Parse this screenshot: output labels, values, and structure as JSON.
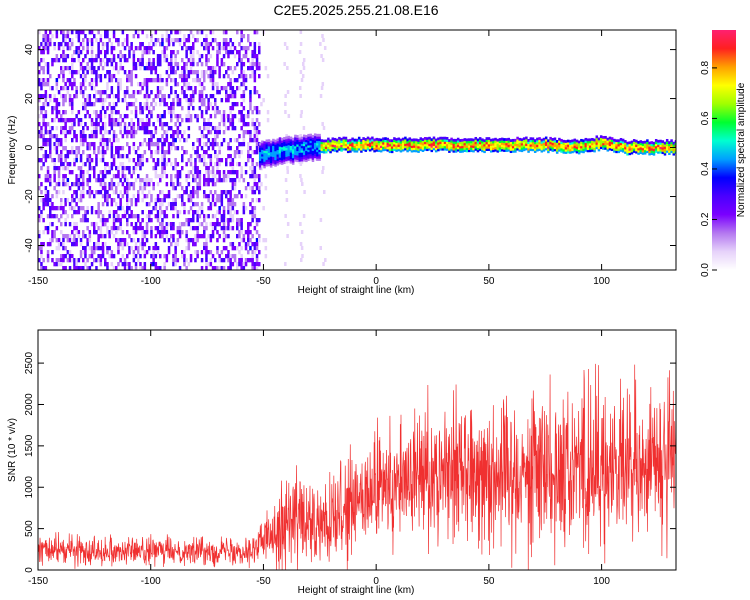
{
  "title": "C2E5.2025.255.21.08.E16",
  "colors": {
    "snr_line": "#f03030",
    "colormap": [
      "#ffffff",
      "#e6d2fa",
      "#b478f0",
      "#7a00ff",
      "#4a00ff",
      "#0000ff",
      "#00a0ff",
      "#00ffd0",
      "#00ff30",
      "#a0ff00",
      "#ffff00",
      "#ffa000",
      "#ff2020",
      "#ff2070"
    ]
  },
  "chart_data": [
    {
      "type": "heatmap",
      "xlabel": "Height of straight line (km)",
      "ylabel": "Frequency (Hz)",
      "xlim": [
        -150,
        133
      ],
      "ylim": [
        -50,
        48
      ],
      "xticks": [
        -150,
        -100,
        -50,
        0,
        50,
        100
      ],
      "yticks": [
        -40,
        -20,
        0,
        20,
        40
      ],
      "colorbar": {
        "label": "Normalized spectral amplitude",
        "range": [
          0,
          0.95
        ],
        "ticks": [
          "0.0",
          "0.2",
          "0.4",
          "0.6",
          "0.8"
        ]
      },
      "noise_region": {
        "x_range": [
          -150,
          -52
        ],
        "amplitude": 0.3
      },
      "signal_band": {
        "x_range": [
          -52,
          133
        ],
        "center_hz": [
          {
            "x": -52,
            "y": -3
          },
          {
            "x": -40,
            "y": -1
          },
          {
            "x": -30,
            "y": 0
          },
          {
            "x": -20,
            "y": 1
          },
          {
            "x": 0,
            "y": 1
          },
          {
            "x": 50,
            "y": 1
          },
          {
            "x": 75,
            "y": 1
          },
          {
            "x": 90,
            "y": 0
          },
          {
            "x": 100,
            "y": 2
          },
          {
            "x": 110,
            "y": 0
          },
          {
            "x": 133,
            "y": 0
          }
        ],
        "peak_amplitude": 0.9,
        "width_hz": 6
      }
    },
    {
      "type": "line",
      "xlabel": "Height of straight line (km)",
      "ylabel": "SNR (10 * v/v)",
      "xlim": [
        -150,
        133
      ],
      "ylim": [
        0,
        2900
      ],
      "xticks": [
        -150,
        -100,
        -50,
        0,
        50,
        100
      ],
      "yticks": [
        0,
        500,
        1000,
        1500,
        2000,
        2500
      ],
      "series": [
        {
          "points": [
            {
              "x": -150,
              "y": 250,
              "spread": 90
            },
            {
              "x": -130,
              "y": 240,
              "spread": 100
            },
            {
              "x": -100,
              "y": 230,
              "spread": 90
            },
            {
              "x": -70,
              "y": 230,
              "spread": 90
            },
            {
              "x": -55,
              "y": 250,
              "spread": 100
            },
            {
              "x": -50,
              "y": 350,
              "spread": 150
            },
            {
              "x": -45,
              "y": 500,
              "spread": 250
            },
            {
              "x": -40,
              "y": 600,
              "spread": 300
            },
            {
              "x": -35,
              "y": 650,
              "spread": 350
            },
            {
              "x": -30,
              "y": 500,
              "spread": 300
            },
            {
              "x": -25,
              "y": 500,
              "spread": 300
            },
            {
              "x": -20,
              "y": 550,
              "spread": 300
            },
            {
              "x": -10,
              "y": 750,
              "spread": 350
            },
            {
              "x": 0,
              "y": 950,
              "spread": 400
            },
            {
              "x": 10,
              "y": 1050,
              "spread": 400
            },
            {
              "x": 20,
              "y": 1150,
              "spread": 450
            },
            {
              "x": 30,
              "y": 1250,
              "spread": 450
            },
            {
              "x": 40,
              "y": 1250,
              "spread": 450
            },
            {
              "x": 50,
              "y": 1200,
              "spread": 500
            },
            {
              "x": 60,
              "y": 1200,
              "spread": 500
            },
            {
              "x": 70,
              "y": 1250,
              "spread": 550
            },
            {
              "x": 80,
              "y": 1250,
              "spread": 550
            },
            {
              "x": 90,
              "y": 1300,
              "spread": 600
            },
            {
              "x": 100,
              "y": 1250,
              "spread": 550
            },
            {
              "x": 110,
              "y": 1200,
              "spread": 500
            },
            {
              "x": 120,
              "y": 1250,
              "spread": 550
            },
            {
              "x": 133,
              "y": 1300,
              "spread": 550
            }
          ]
        }
      ]
    }
  ]
}
